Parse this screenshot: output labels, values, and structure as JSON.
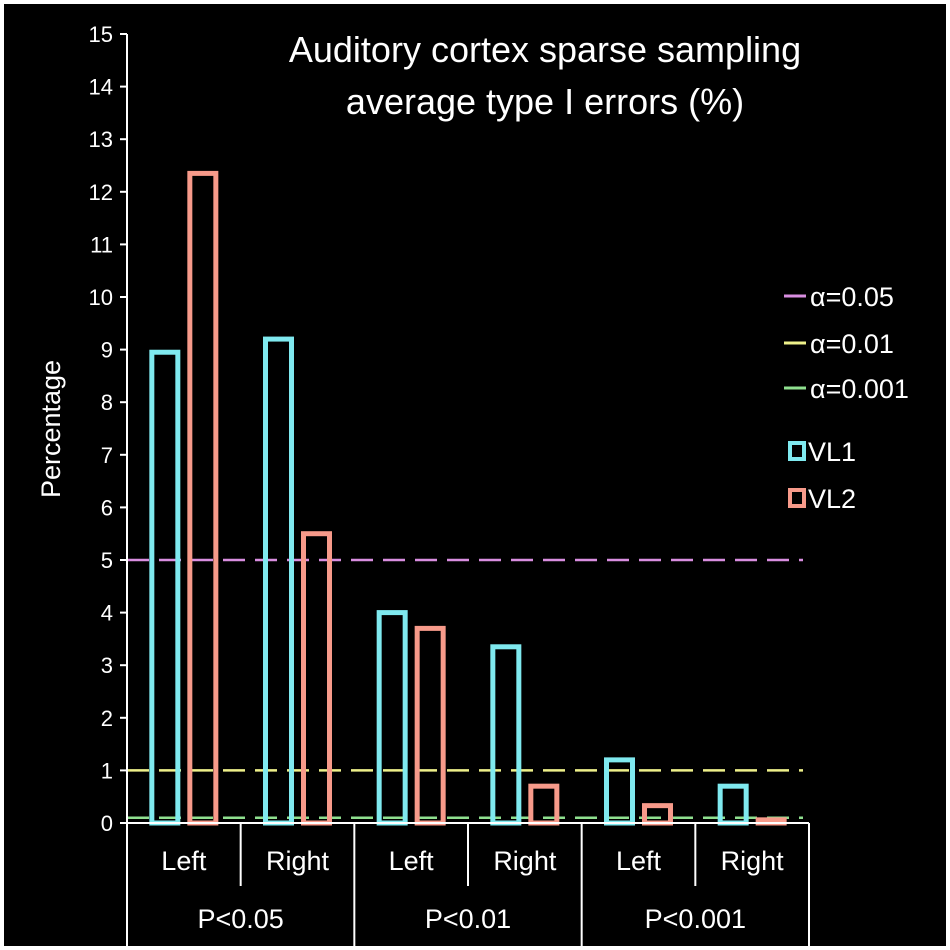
{
  "chart_data": {
    "type": "bar",
    "title_lines": [
      "Auditory cortex sparse sampling",
      "average type I errors (%)"
    ],
    "ylabel": "Percentage",
    "xlabel": "",
    "ylim": [
      0,
      15
    ],
    "yticks": [
      "0",
      "1",
      "2",
      "3",
      "4",
      "5",
      "6",
      "7",
      "8",
      "9",
      "10",
      "11",
      "12",
      "13",
      "14",
      "15"
    ],
    "categories": [
      "Left",
      "Right",
      "Left",
      "Right",
      "Left",
      "Right"
    ],
    "groups": [
      "P<0.05",
      "P<0.01",
      "P<0.001"
    ],
    "series": [
      {
        "name": "VL1",
        "color": "#7fe9ef",
        "values": [
          8.95,
          9.2,
          4.0,
          3.35,
          1.2,
          0.7
        ]
      },
      {
        "name": "VL2",
        "color": "#f79a8a",
        "values": [
          12.35,
          5.5,
          3.7,
          0.7,
          0.33,
          0.06
        ]
      }
    ],
    "reference_lines": [
      {
        "name": "α=0.05",
        "value": 5,
        "color": "#d98ee0"
      },
      {
        "name": "α=0.01",
        "value": 1,
        "color": "#eef08a"
      },
      {
        "name": "α=0.001",
        "value": 0.1,
        "color": "#8fe08f"
      }
    ],
    "legend_position": "right",
    "grid": false
  }
}
